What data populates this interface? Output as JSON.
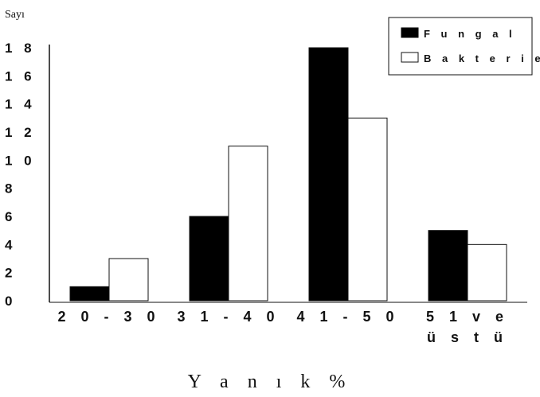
{
  "chart_data": {
    "type": "bar",
    "ylabel": "Sayı",
    "xlabel": "Y a n ı k %",
    "categories": [
      "2 0 - 3 0",
      "3 1 - 4 0",
      "4 1 - 5 0",
      "5 1  v e\nü s t ü"
    ],
    "yticks": [
      "0",
      "2",
      "4",
      "6",
      "8",
      "1 0",
      "1 2",
      "1 4",
      "1 6",
      "1 8"
    ],
    "ylim": [
      0,
      18
    ],
    "series": [
      {
        "name": "Fungal",
        "color": "#000000",
        "values": [
          1,
          6,
          18,
          5
        ]
      },
      {
        "name": "Bakteriel",
        "color": "#ffffff",
        "values": [
          3,
          11,
          13,
          4
        ]
      }
    ],
    "legend": {
      "position": "top-right",
      "labels": [
        "F u n g a l",
        "B a k t e r i e l"
      ]
    }
  }
}
